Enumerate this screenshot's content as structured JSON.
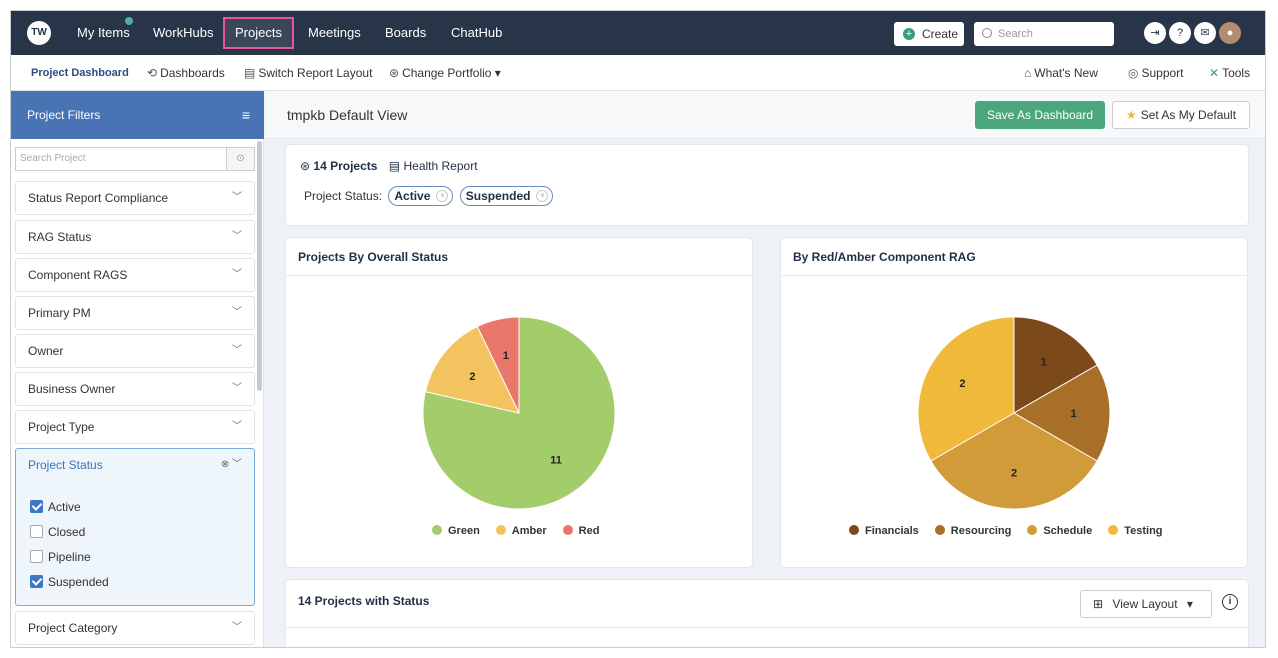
{
  "topnav": {
    "logo": "TW",
    "items": [
      "My Items",
      "WorkHubs",
      "Projects",
      "Meetings",
      "Boards",
      "ChatHub"
    ],
    "create_label": "Create",
    "search_placeholder": "Search"
  },
  "subnav": {
    "items": [
      "Project Dashboard",
      "Dashboards",
      "Switch Report Layout",
      "Change Portfolio"
    ],
    "right": [
      "What's New",
      "Support",
      "Tools"
    ]
  },
  "sidebar": {
    "title": "Project Filters",
    "search_placeholder": "Search Project",
    "filters": [
      "Status Report Compliance",
      "RAG Status",
      "Component RAGS",
      "Primary PM",
      "Owner",
      "Business Owner",
      "Project Type",
      "Project Status",
      "Project Category"
    ],
    "status_options": [
      {
        "label": "Active",
        "checked": true
      },
      {
        "label": "Closed",
        "checked": false
      },
      {
        "label": "Pipeline",
        "checked": false
      },
      {
        "label": "Suspended",
        "checked": true
      }
    ]
  },
  "main": {
    "view_title": "tmpkb Default View",
    "save_label": "Save As Dashboard",
    "default_label": "Set As My Default",
    "projects_count": "14 Projects",
    "health_report": "Health Report",
    "status_label": "Project Status:",
    "status_chips": [
      "Active",
      "Suspended"
    ],
    "table_title": "14 Projects with Status",
    "view_layout": "View Layout"
  },
  "chart_data": [
    {
      "type": "pie",
      "title": "Projects By Overall Status",
      "categories": [
        "Green",
        "Amber",
        "Red"
      ],
      "values": [
        11,
        2,
        1
      ],
      "colors": [
        "#a3cc6a",
        "#f2c35f",
        "#e9776a"
      ]
    },
    {
      "type": "pie",
      "title": "By Red/Amber Component RAG",
      "categories": [
        "Financials",
        "Resourcing",
        "Schedule",
        "Testing"
      ],
      "values": [
        1,
        1,
        2,
        2
      ],
      "colors": [
        "#7c4a1a",
        "#a86f28",
        "#d29b3a",
        "#f0b93a"
      ]
    }
  ]
}
